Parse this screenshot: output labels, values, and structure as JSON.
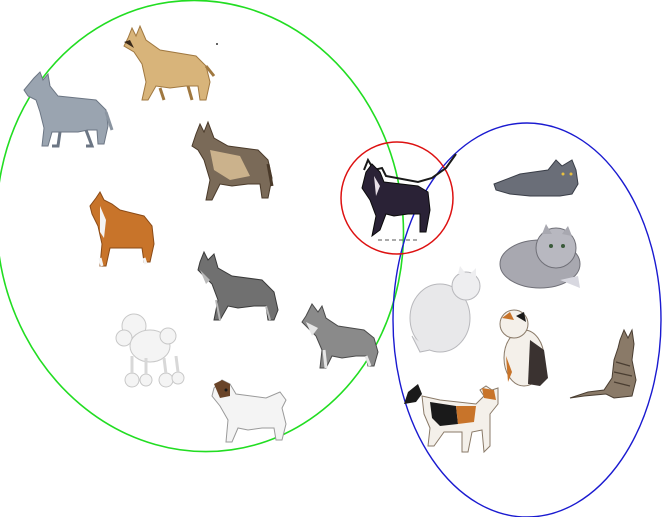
{
  "figure": {
    "description_free": true,
    "groups": [
      {
        "id": "dogs",
        "outline_color": "#22dd22"
      },
      {
        "id": "cats",
        "outline_color": "#1a1ad0"
      },
      {
        "id": "ambiguous",
        "outline_color": "#dd1111"
      }
    ],
    "colors": {
      "tan": "#d8b47a",
      "tan_dark": "#a07840",
      "grey_blue": "#9aa4b0",
      "black": "#1a1a1a",
      "dark_grey": "#555555",
      "silver": "#b8b8b8",
      "white": "#f4f4f4",
      "calico_orange": "#c8742a",
      "tabby": "#8a7a68",
      "persian_grey": "#a8a8b0",
      "cream": "#efe6d8"
    },
    "dogs": [
      {
        "name": "australian-cattle-dog-icon"
      },
      {
        "name": "belgian-malinois-icon"
      },
      {
        "name": "belgian-tervuren-icon"
      },
      {
        "name": "boxer-icon"
      },
      {
        "name": "giant-schnauzer-icon"
      },
      {
        "name": "miniature-schnauzer-icon"
      },
      {
        "name": "poodle-icon"
      },
      {
        "name": "jack-russell-terrier-icon"
      }
    ],
    "cats": [
      {
        "name": "lying-grey-cat-icon"
      },
      {
        "name": "persian-cat-icon"
      },
      {
        "name": "white-cat-icon"
      },
      {
        "name": "scottish-fold-cat-icon"
      },
      {
        "name": "tabby-cat-icon"
      },
      {
        "name": "calico-cat-icon"
      }
    ],
    "ambiguous_animal": {
      "name": "hairless-cat-icon"
    }
  }
}
